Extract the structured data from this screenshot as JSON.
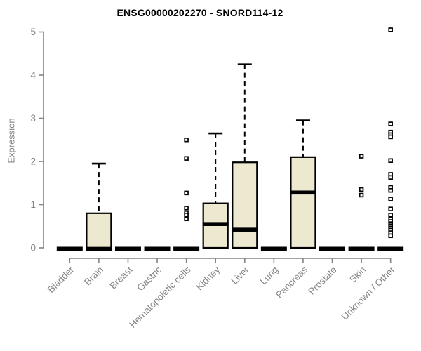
{
  "window": {
    "title": "ENSG00000202270 - SNORD114-12 expression boxplot"
  },
  "chart_data": {
    "type": "boxplot",
    "title": "ENSG00000202270 - SNORD114-12",
    "xlabel": "",
    "ylabel": "Expression",
    "ylim": [
      0,
      5
    ],
    "yticks": [
      0,
      1,
      2,
      3,
      4,
      5
    ],
    "grid": false,
    "legend": "none",
    "categories": [
      "Bladder",
      "Brain",
      "Breast",
      "Gastric",
      "Hematopoietic cells",
      "Kidney",
      "Liver",
      "Lung",
      "Pancreas",
      "Prostate",
      "Skin",
      "Unknown / Other"
    ],
    "boxes": [
      {
        "label": "Bladder",
        "type": "flat",
        "q1": 0,
        "median": 0,
        "q3": 0,
        "whisker_low": 0,
        "whisker_high": 0,
        "outliers": []
      },
      {
        "label": "Brain",
        "type": "box",
        "q1": 0,
        "median": 0,
        "q3": 0.8,
        "whisker_low": 0,
        "whisker_high": 1.95,
        "outliers": []
      },
      {
        "label": "Breast",
        "type": "flat",
        "q1": 0,
        "median": 0,
        "q3": 0,
        "whisker_low": 0,
        "whisker_high": 0,
        "outliers": []
      },
      {
        "label": "Gastric",
        "type": "flat",
        "q1": 0,
        "median": 0,
        "q3": 0,
        "whisker_low": 0,
        "whisker_high": 0,
        "outliers": []
      },
      {
        "label": "Hematopoietic cells",
        "type": "flat",
        "q1": 0,
        "median": 0,
        "q3": 0,
        "whisker_low": 0,
        "whisker_high": 0,
        "outliers": [
          2.5,
          2.07,
          1.27,
          0.92,
          0.81,
          0.76,
          0.67
        ]
      },
      {
        "label": "Kidney",
        "type": "box",
        "q1": 0,
        "median": 0.55,
        "q3": 1.03,
        "whisker_low": 0,
        "whisker_high": 2.65,
        "outliers": []
      },
      {
        "label": "Liver",
        "type": "box",
        "q1": 0,
        "median": 0.42,
        "q3": 1.98,
        "whisker_low": 0,
        "whisker_high": 4.25,
        "outliers": []
      },
      {
        "label": "Lung",
        "type": "flat",
        "q1": 0,
        "median": 0,
        "q3": 0,
        "whisker_low": 0,
        "whisker_high": 0,
        "outliers": []
      },
      {
        "label": "Pancreas",
        "type": "box",
        "q1": 0,
        "median": 1.28,
        "q3": 2.1,
        "whisker_low": 0,
        "whisker_high": 2.95,
        "outliers": []
      },
      {
        "label": "Prostate",
        "type": "flat",
        "q1": 0,
        "median": 0,
        "q3": 0,
        "whisker_low": 0,
        "whisker_high": 0,
        "outliers": []
      },
      {
        "label": "Skin",
        "type": "flat",
        "q1": 0,
        "median": 0,
        "q3": 0,
        "whisker_low": 0,
        "whisker_high": 0,
        "outliers": [
          2.12,
          1.35,
          1.22
        ]
      },
      {
        "label": "Unknown / Other",
        "type": "flat",
        "q1": 0,
        "median": 0,
        "q3": 0,
        "whisker_low": 0,
        "whisker_high": 0,
        "outliers": [
          5.05,
          2.87,
          2.68,
          2.62,
          2.57,
          2.02,
          1.7,
          1.63,
          1.4,
          1.33,
          1.13,
          0.9,
          0.76,
          0.66,
          0.61,
          0.56,
          0.51,
          0.46,
          0.41,
          0.35,
          0.28
        ]
      }
    ],
    "colors": {
      "box_fill": "#EDE8D0",
      "box_border": "#000000",
      "median": "#000000",
      "whisker": "#000000",
      "outlier_stroke": "#000000",
      "axis": "#848484",
      "tick_label": "#848484",
      "title": "#000000"
    }
  }
}
